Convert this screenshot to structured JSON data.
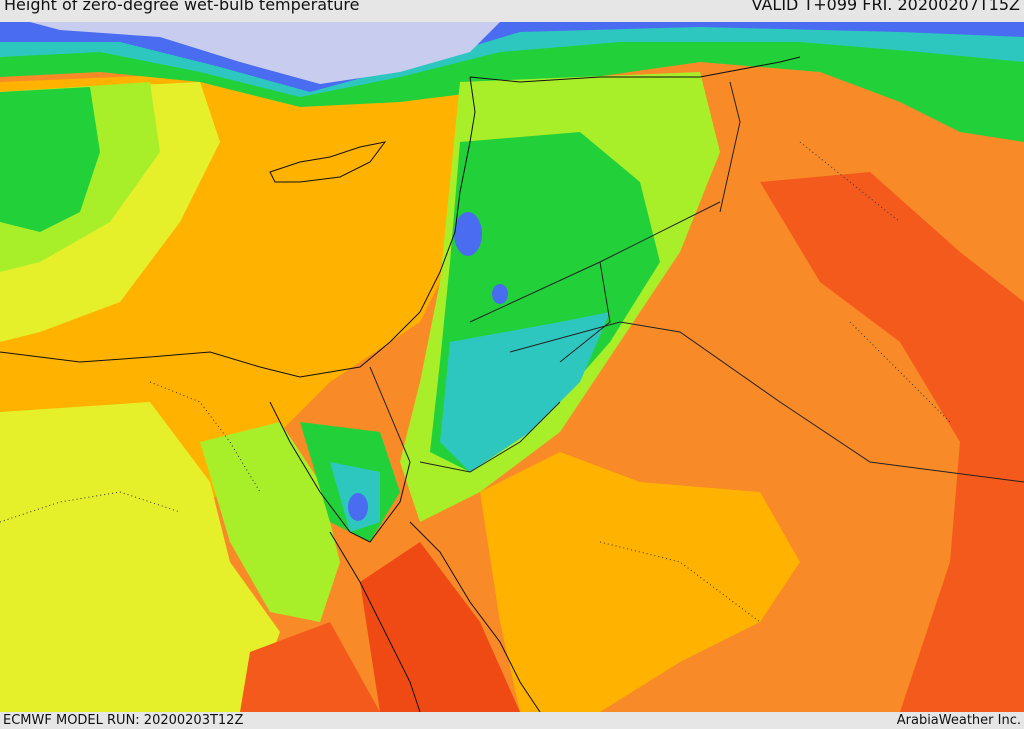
{
  "header": {
    "title": "Height of zero-degree wet-bulb temperature",
    "valid": "VALID T+099 FRI. 20200207T15Z"
  },
  "footer": {
    "model_run": "ECMWF MODEL RUN: 20200203T12Z",
    "credit": "ArabiaWeather Inc."
  },
  "palette": {
    "very_low": "#c8cdf0",
    "low_blue": "#4a6cf0",
    "cyan": "#2ec7c0",
    "green": "#22d13a",
    "yellow_green": "#a8ef2a",
    "yellow": "#e6f02a",
    "orange_light": "#ffb200",
    "orange": "#f88a28",
    "red_orange": "#f45a1c",
    "red": "#f04a14"
  }
}
